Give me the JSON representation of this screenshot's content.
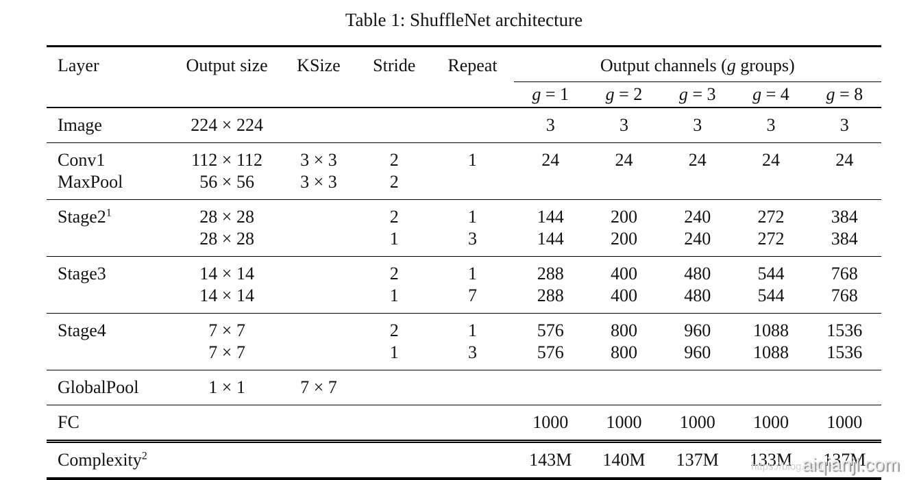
{
  "page": {
    "background": "#ffffff",
    "text_color": "#121212",
    "rule_color": "#000000"
  },
  "title": "Table 1: ShuffleNet architecture",
  "table": {
    "headers": {
      "layer": "Layer",
      "output_size": "Output size",
      "ksize": "KSize",
      "stride": "Stride",
      "repeat": "Repeat",
      "channels": {
        "prefix": "Output channels (",
        "var": "g",
        "suffix": " groups)"
      },
      "group_cols": [
        {
          "var": "g",
          "rest": " = 1"
        },
        {
          "var": "g",
          "rest": " = 2"
        },
        {
          "var": "g",
          "rest": " = 3"
        },
        {
          "var": "g",
          "rest": " = 4"
        },
        {
          "var": "g",
          "rest": " = 8"
        }
      ]
    },
    "rows": [
      {
        "layer": {
          "text": "Image",
          "sup": ""
        },
        "cells": [
          "224 × 224",
          "",
          "",
          "",
          "3",
          "3",
          "3",
          "3",
          "3"
        ]
      },
      {
        "layer": {
          "text": "Conv1",
          "sup": ""
        },
        "cells": [
          "112 × 112",
          "3 × 3",
          "2",
          "1",
          "24",
          "24",
          "24",
          "24",
          "24"
        ]
      },
      {
        "layer": {
          "text": "MaxPool",
          "sup": ""
        },
        "cells": [
          "56 × 56",
          "3 × 3",
          "2",
          "",
          "",
          "",
          "",
          "",
          ""
        ]
      },
      {
        "layer": {
          "text": "Stage2",
          "sup": "1"
        },
        "cells": [
          "28 × 28",
          "",
          "2",
          "1",
          "144",
          "200",
          "240",
          "272",
          "384"
        ]
      },
      {
        "layer": {
          "text": "",
          "sup": ""
        },
        "cells": [
          "28 × 28",
          "",
          "1",
          "3",
          "144",
          "200",
          "240",
          "272",
          "384"
        ]
      },
      {
        "layer": {
          "text": "Stage3",
          "sup": ""
        },
        "cells": [
          "14 × 14",
          "",
          "2",
          "1",
          "288",
          "400",
          "480",
          "544",
          "768"
        ]
      },
      {
        "layer": {
          "text": "",
          "sup": ""
        },
        "cells": [
          "14 × 14",
          "",
          "1",
          "7",
          "288",
          "400",
          "480",
          "544",
          "768"
        ]
      },
      {
        "layer": {
          "text": "Stage4",
          "sup": ""
        },
        "cells": [
          "7 × 7",
          "",
          "2",
          "1",
          "576",
          "800",
          "960",
          "1088",
          "1536"
        ]
      },
      {
        "layer": {
          "text": "",
          "sup": ""
        },
        "cells": [
          "7 × 7",
          "",
          "1",
          "3",
          "576",
          "800",
          "960",
          "1088",
          "1536"
        ]
      },
      {
        "layer": {
          "text": "GlobalPool",
          "sup": ""
        },
        "cells": [
          "1 × 1",
          "7 × 7",
          "",
          "",
          "",
          "",
          "",
          "",
          ""
        ]
      },
      {
        "layer": {
          "text": "FC",
          "sup": ""
        },
        "cells": [
          "",
          "",
          "",
          "",
          "1000",
          "1000",
          "1000",
          "1000",
          "1000"
        ]
      },
      {
        "layer": {
          "text": "Complexity",
          "sup": "2"
        },
        "cells": [
          "",
          "",
          "",
          "",
          "143M",
          "140M",
          "137M",
          "133M",
          "137M"
        ]
      }
    ]
  },
  "watermark": {
    "url_text": "https://blog.csdn",
    "site_text": "aiqianji.com"
  }
}
